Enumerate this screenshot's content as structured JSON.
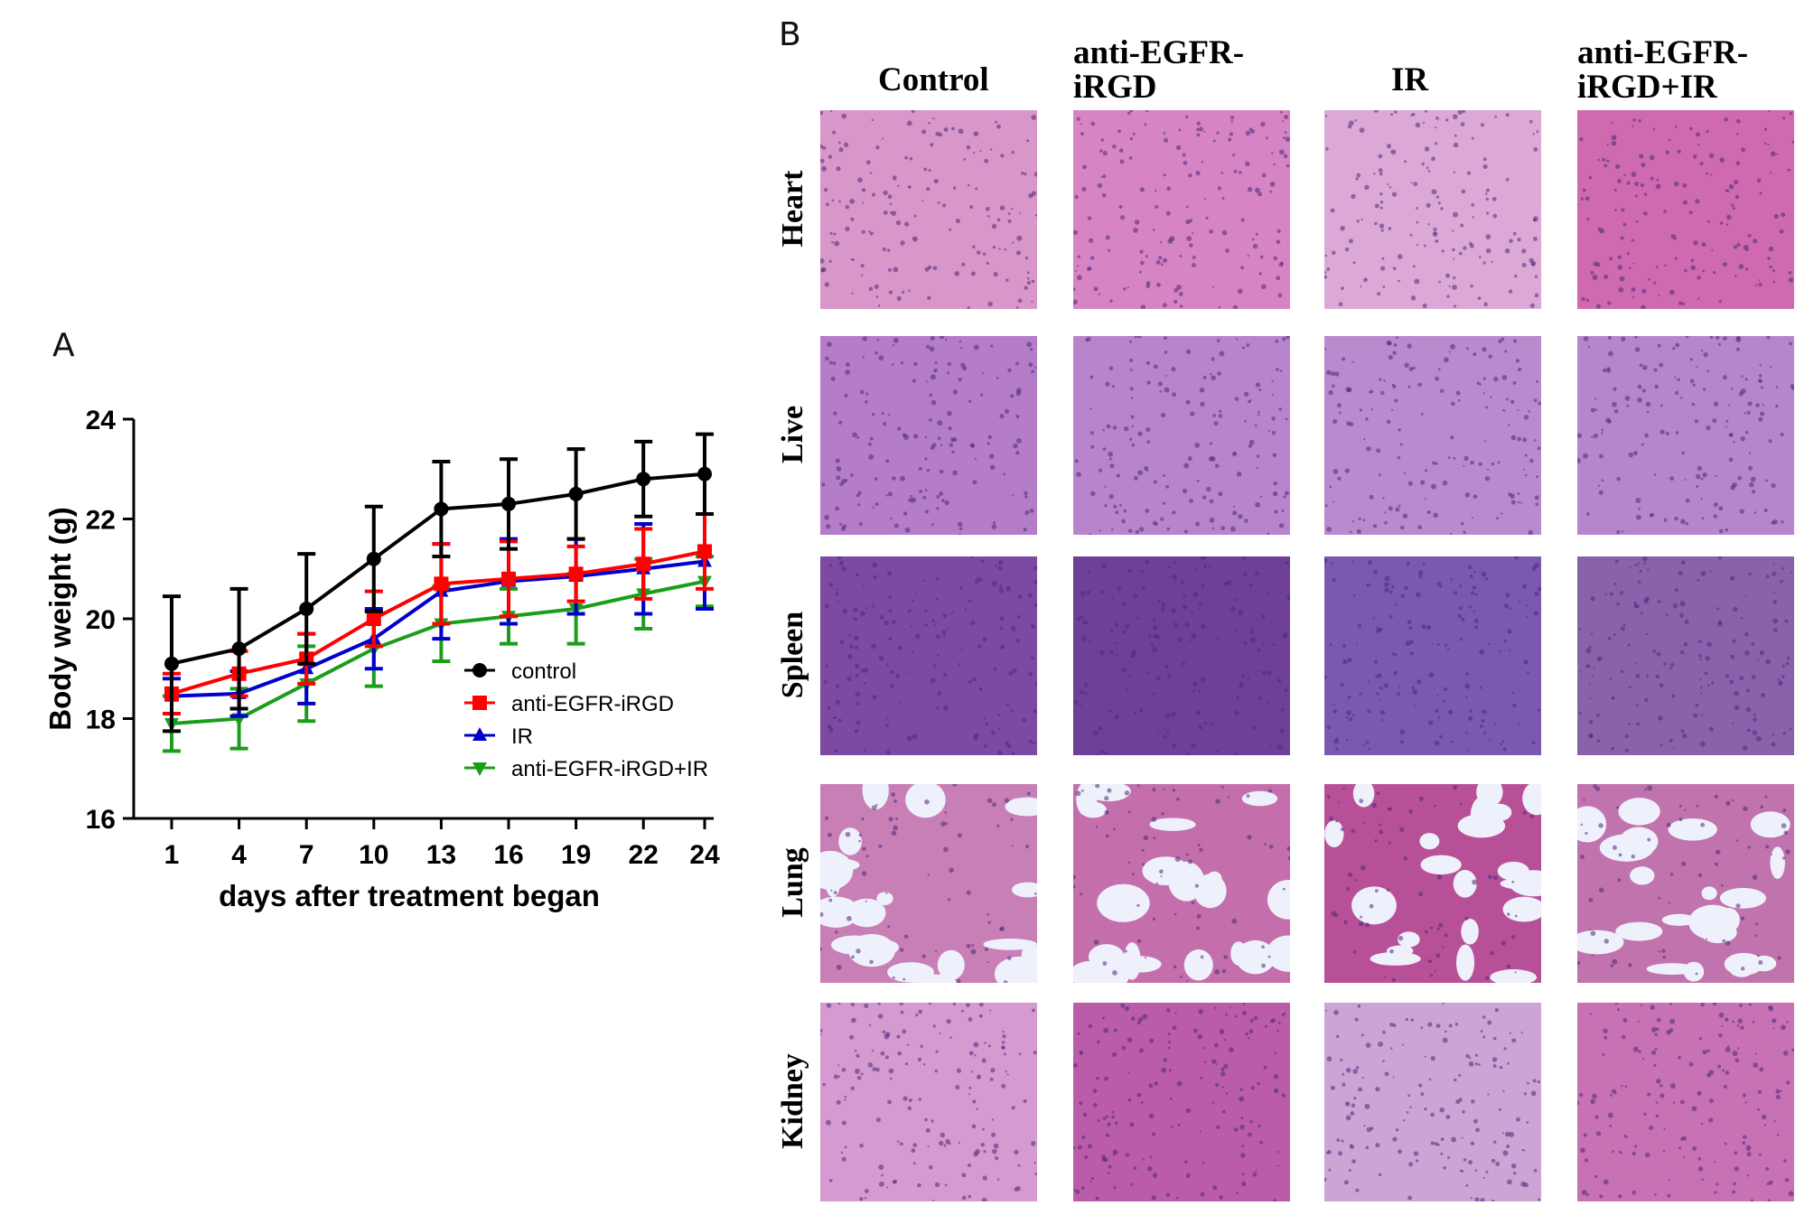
{
  "panel_a_label": "A",
  "panel_b_label": "B",
  "chart_data": {
    "type": "line",
    "xlabel": "days after treatment began",
    "ylabel": "Body weight (g)",
    "categories": [
      "1",
      "4",
      "7",
      "10",
      "13",
      "16",
      "19",
      "22",
      "24"
    ],
    "ylim": [
      16,
      24
    ],
    "yticks": [
      "16",
      "18",
      "20",
      "22",
      "24"
    ],
    "grid": false,
    "legend_position": "bottom-right",
    "series": [
      {
        "name": "control",
        "color": "#000000",
        "marker": "circle",
        "values": [
          19.1,
          19.4,
          20.2,
          21.2,
          22.2,
          22.3,
          22.5,
          22.8,
          22.9
        ],
        "errors": [
          1.35,
          1.2,
          1.1,
          1.05,
          0.95,
          0.9,
          0.9,
          0.75,
          0.8
        ]
      },
      {
        "name": "anti-EGFR-iRGD",
        "color": "#ff0000",
        "marker": "square",
        "values": [
          18.5,
          18.9,
          19.2,
          20.0,
          20.7,
          20.8,
          20.9,
          21.1,
          21.35
        ],
        "errors": [
          0.4,
          0.45,
          0.5,
          0.55,
          0.8,
          0.75,
          0.55,
          0.7,
          0.75
        ]
      },
      {
        "name": "IR",
        "color": "#0000cc",
        "marker": "triangle-up",
        "values": [
          18.45,
          18.5,
          19.0,
          19.6,
          20.55,
          20.75,
          20.85,
          21.0,
          21.15
        ],
        "errors": [
          0.35,
          0.45,
          0.7,
          0.6,
          0.95,
          0.85,
          0.75,
          0.9,
          0.95
        ]
      },
      {
        "name": "anti-EGFR-iRGD+IR",
        "color": "#1a9e1a",
        "marker": "triangle-down",
        "values": [
          17.9,
          18.0,
          18.7,
          19.4,
          19.9,
          20.05,
          20.2,
          20.5,
          20.75
        ],
        "errors": [
          0.55,
          0.6,
          0.75,
          0.75,
          0.75,
          0.55,
          0.7,
          0.7,
          0.5
        ]
      }
    ]
  },
  "histology": {
    "columns": [
      "Control",
      "anti-EGFR-\niRGD",
      "IR",
      "anti-EGFR-\niRGD+IR"
    ],
    "rows": [
      "Heart",
      "Live",
      "Spleen",
      "Lung",
      "Kidney"
    ],
    "colors": {
      "Heart": [
        "#d996c9",
        "#d684c4",
        "#dca8d6",
        "#cf6ab0"
      ],
      "Live": [
        "#b57cc9",
        "#b884cc",
        "#b98acd",
        "#b785cb"
      ],
      "Spleen": [
        "#7d4aa3",
        "#6f409a",
        "#7b59b0",
        "#8a62ac"
      ],
      "Lung": [
        "#c87fb5",
        "#c46fab",
        "#b85097",
        "#c173ae"
      ],
      "Kidney": [
        "#d59ad0",
        "#bb5ca9",
        "#cca4d6",
        "#c871b4"
      ]
    }
  }
}
